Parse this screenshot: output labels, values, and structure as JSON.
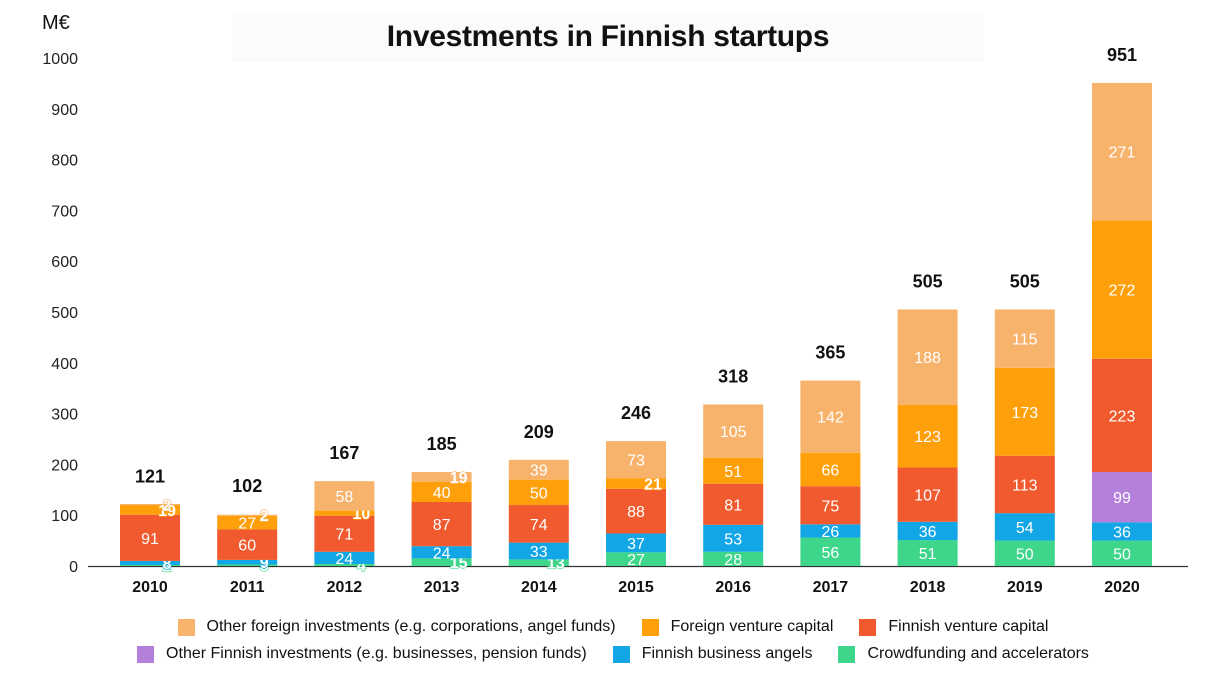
{
  "chart_data": {
    "type": "bar",
    "stacked": true,
    "title": "Investments in Finnish startups",
    "unit": "M€",
    "ylim": [
      0,
      1000
    ],
    "yticks": [
      0,
      100,
      200,
      300,
      400,
      500,
      600,
      700,
      800,
      900,
      1000
    ],
    "grid": false,
    "legend_position": "bottom",
    "categories": [
      "2010",
      "2011",
      "2012",
      "2013",
      "2014",
      "2015",
      "2016",
      "2017",
      "2018",
      "2019",
      "2020"
    ],
    "totals": [
      121,
      102,
      167,
      185,
      209,
      246,
      318,
      365,
      505,
      505,
      951
    ],
    "series": [
      {
        "name": "Crowdfunding and accelerators",
        "color": "#3dd68a",
        "values": [
          2,
          3,
          4,
          15,
          13,
          27,
          28,
          56,
          51,
          50,
          50
        ]
      },
      {
        "name": "Finnish business angels",
        "color": "#12a6e6",
        "values": [
          8,
          9,
          24,
          24,
          33,
          37,
          53,
          26,
          36,
          54,
          36
        ]
      },
      {
        "name": "Other Finnish investments (e.g. businesses, pension funds)",
        "color": "#b57fdc",
        "values": [
          0,
          0,
          0,
          0,
          0,
          0,
          0,
          0,
          0,
          0,
          99
        ]
      },
      {
        "name": "Finnish venture capital",
        "color": "#f15a2e",
        "values": [
          91,
          60,
          71,
          87,
          74,
          88,
          81,
          75,
          107,
          113,
          223
        ]
      },
      {
        "name": "Foreign venture capital",
        "color": "#ffa00a",
        "values": [
          19,
          27,
          10,
          40,
          50,
          21,
          51,
          66,
          123,
          173,
          272
        ]
      },
      {
        "name": "Other foreign investments (e.g. corporations, angel funds)",
        "color": "#f7b36b",
        "values": [
          2,
          2,
          58,
          19,
          39,
          73,
          105,
          142,
          188,
          115,
          271
        ]
      }
    ]
  },
  "legend": {
    "row1": [
      {
        "label": "Other foreign investments (e.g. corporations, angel funds)",
        "color": "#f7b36b"
      },
      {
        "label": "Foreign venture capital",
        "color": "#ffa00a"
      },
      {
        "label": "Finnish venture capital",
        "color": "#f15a2e"
      }
    ],
    "row2": [
      {
        "label": "Other Finnish investments (e.g. businesses, pension funds)",
        "color": "#b57fdc"
      },
      {
        "label": "Finnish business angels",
        "color": "#12a6e6"
      },
      {
        "label": "Crowdfunding and accelerators",
        "color": "#3dd68a"
      }
    ]
  }
}
